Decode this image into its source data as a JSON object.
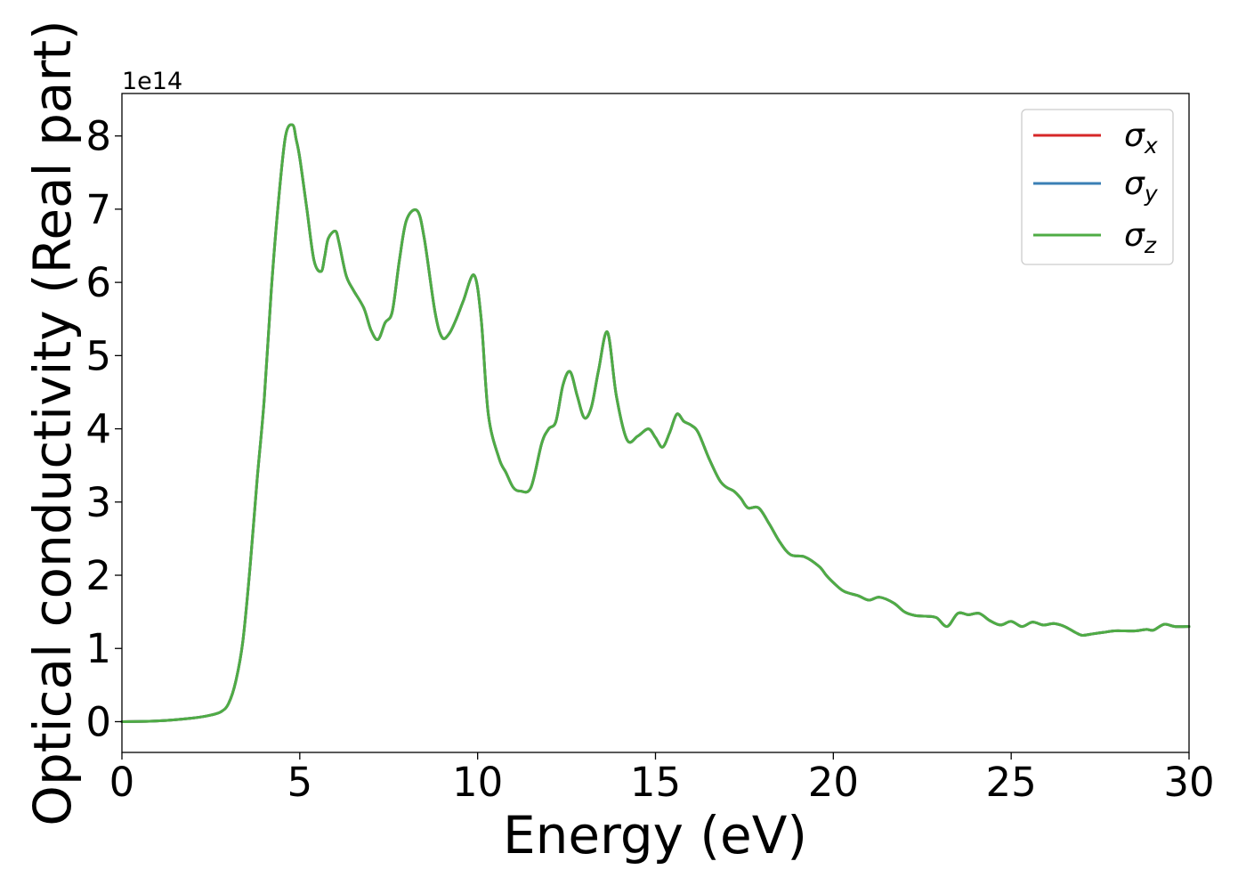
{
  "chart_data": {
    "type": "line",
    "title": "",
    "xlabel": "Energy (eV)",
    "ylabel": "Optical conductivity (Real part)",
    "offset_label": "1e14",
    "xlim": [
      0,
      30
    ],
    "ylim": [
      -0.42,
      8.58
    ],
    "x_ticks": [
      0,
      5,
      10,
      15,
      20,
      25,
      30
    ],
    "x_tick_labels": [
      "0",
      "5",
      "10",
      "15",
      "20",
      "25",
      "30"
    ],
    "y_ticks": [
      0,
      1,
      2,
      3,
      4,
      5,
      6,
      7,
      8
    ],
    "y_tick_labels": [
      "0",
      "1",
      "2",
      "3",
      "4",
      "5",
      "6",
      "7",
      "8"
    ],
    "y_scale_factor": 100000000000000.0,
    "grid": false,
    "legend_position": "top-right",
    "legend": [
      {
        "math": "σ",
        "sub": "x",
        "color": "#d62728"
      },
      {
        "math": "σ",
        "sub": "y",
        "color": "#3a7fb5"
      },
      {
        "math": "σ",
        "sub": "z",
        "color": "#4fac45"
      }
    ],
    "x": [
      0,
      1,
      2,
      2.5,
      2.8,
      3.0,
      3.2,
      3.4,
      3.6,
      3.8,
      4.0,
      4.2,
      4.4,
      4.6,
      4.8,
      4.9,
      5.0,
      5.2,
      5.4,
      5.6,
      5.7,
      5.8,
      6.0,
      6.1,
      6.3,
      6.5,
      6.8,
      7.0,
      7.2,
      7.4,
      7.6,
      7.8,
      8.0,
      8.3,
      8.5,
      8.8,
      9.0,
      9.2,
      9.4,
      9.6,
      9.9,
      10.1,
      10.3,
      10.6,
      10.8,
      11.0,
      11.2,
      11.5,
      11.8,
      12.0,
      12.2,
      12.4,
      12.6,
      12.8,
      13.0,
      13.2,
      13.4,
      13.65,
      13.9,
      14.2,
      14.5,
      14.8,
      15.0,
      15.2,
      15.4,
      15.6,
      15.8,
      16.0,
      16.2,
      16.5,
      16.8,
      17.0,
      17.2,
      17.4,
      17.6,
      17.9,
      18.2,
      18.5,
      18.8,
      19.2,
      19.6,
      19.8,
      20.0,
      20.3,
      20.7,
      21.0,
      21.3,
      21.7,
      22.0,
      22.3,
      22.6,
      22.9,
      23.2,
      23.5,
      23.8,
      24.1,
      24.4,
      24.7,
      25.0,
      25.3,
      25.6,
      25.9,
      26.2,
      26.5,
      26.8,
      27.0,
      27.3,
      27.6,
      27.9,
      28.2,
      28.5,
      28.8,
      29.0,
      29.3,
      29.6,
      30.0
    ],
    "series": [
      {
        "name": "σx",
        "color": "#d62728",
        "values": [
          0.0,
          0.01,
          0.05,
          0.09,
          0.14,
          0.25,
          0.55,
          1.1,
          2.1,
          3.3,
          4.4,
          5.9,
          7.1,
          8.0,
          8.15,
          7.95,
          7.7,
          7.0,
          6.3,
          6.15,
          6.35,
          6.6,
          6.7,
          6.55,
          6.1,
          5.9,
          5.65,
          5.35,
          5.22,
          5.45,
          5.6,
          6.3,
          6.85,
          6.98,
          6.6,
          5.6,
          5.25,
          5.3,
          5.5,
          5.75,
          6.1,
          5.5,
          4.2,
          3.6,
          3.4,
          3.2,
          3.15,
          3.2,
          3.8,
          4.0,
          4.1,
          4.6,
          4.78,
          4.45,
          4.15,
          4.3,
          4.8,
          5.32,
          4.45,
          3.85,
          3.9,
          4.0,
          3.88,
          3.75,
          3.95,
          4.2,
          4.1,
          4.05,
          3.95,
          3.6,
          3.3,
          3.2,
          3.15,
          3.05,
          2.92,
          2.92,
          2.7,
          2.45,
          2.28,
          2.25,
          2.12,
          2.0,
          1.9,
          1.78,
          1.72,
          1.66,
          1.7,
          1.62,
          1.5,
          1.45,
          1.44,
          1.42,
          1.3,
          1.48,
          1.46,
          1.48,
          1.38,
          1.32,
          1.37,
          1.3,
          1.36,
          1.32,
          1.34,
          1.3,
          1.22,
          1.18,
          1.2,
          1.22,
          1.24,
          1.24,
          1.24,
          1.26,
          1.25,
          1.33,
          1.3,
          1.3
        ]
      },
      {
        "name": "σy",
        "color": "#3a7fb5",
        "values": [
          0.0,
          0.01,
          0.05,
          0.09,
          0.14,
          0.25,
          0.55,
          1.1,
          2.1,
          3.3,
          4.4,
          5.9,
          7.1,
          8.0,
          8.15,
          7.95,
          7.7,
          7.0,
          6.3,
          6.15,
          6.35,
          6.6,
          6.7,
          6.55,
          6.1,
          5.9,
          5.65,
          5.35,
          5.22,
          5.45,
          5.6,
          6.3,
          6.85,
          6.98,
          6.6,
          5.6,
          5.25,
          5.3,
          5.5,
          5.75,
          6.1,
          5.5,
          4.2,
          3.6,
          3.4,
          3.2,
          3.15,
          3.2,
          3.8,
          4.0,
          4.1,
          4.6,
          4.78,
          4.45,
          4.15,
          4.3,
          4.8,
          5.32,
          4.45,
          3.85,
          3.9,
          4.0,
          3.88,
          3.75,
          3.95,
          4.2,
          4.1,
          4.05,
          3.95,
          3.6,
          3.3,
          3.2,
          3.15,
          3.05,
          2.92,
          2.92,
          2.7,
          2.45,
          2.28,
          2.25,
          2.12,
          2.0,
          1.9,
          1.78,
          1.72,
          1.66,
          1.7,
          1.62,
          1.5,
          1.45,
          1.44,
          1.42,
          1.3,
          1.48,
          1.46,
          1.48,
          1.38,
          1.32,
          1.37,
          1.3,
          1.36,
          1.32,
          1.34,
          1.3,
          1.22,
          1.18,
          1.2,
          1.22,
          1.24,
          1.24,
          1.24,
          1.26,
          1.25,
          1.33,
          1.3,
          1.3
        ]
      },
      {
        "name": "σz",
        "color": "#4fac45",
        "values": [
          0.0,
          0.01,
          0.05,
          0.09,
          0.14,
          0.25,
          0.55,
          1.1,
          2.1,
          3.3,
          4.4,
          5.9,
          7.1,
          8.0,
          8.15,
          7.95,
          7.7,
          7.0,
          6.3,
          6.15,
          6.35,
          6.6,
          6.7,
          6.55,
          6.1,
          5.9,
          5.65,
          5.35,
          5.22,
          5.45,
          5.6,
          6.3,
          6.85,
          6.98,
          6.6,
          5.6,
          5.25,
          5.3,
          5.5,
          5.75,
          6.1,
          5.5,
          4.2,
          3.6,
          3.4,
          3.2,
          3.15,
          3.2,
          3.8,
          4.0,
          4.1,
          4.6,
          4.78,
          4.45,
          4.15,
          4.3,
          4.8,
          5.32,
          4.45,
          3.85,
          3.9,
          4.0,
          3.88,
          3.75,
          3.95,
          4.2,
          4.1,
          4.05,
          3.95,
          3.6,
          3.3,
          3.2,
          3.15,
          3.05,
          2.92,
          2.92,
          2.7,
          2.45,
          2.28,
          2.25,
          2.12,
          2.0,
          1.9,
          1.78,
          1.72,
          1.66,
          1.7,
          1.62,
          1.5,
          1.45,
          1.44,
          1.42,
          1.3,
          1.48,
          1.46,
          1.48,
          1.38,
          1.32,
          1.37,
          1.3,
          1.36,
          1.32,
          1.34,
          1.3,
          1.22,
          1.18,
          1.2,
          1.22,
          1.24,
          1.24,
          1.24,
          1.26,
          1.25,
          1.33,
          1.3,
          1.3
        ]
      }
    ]
  }
}
